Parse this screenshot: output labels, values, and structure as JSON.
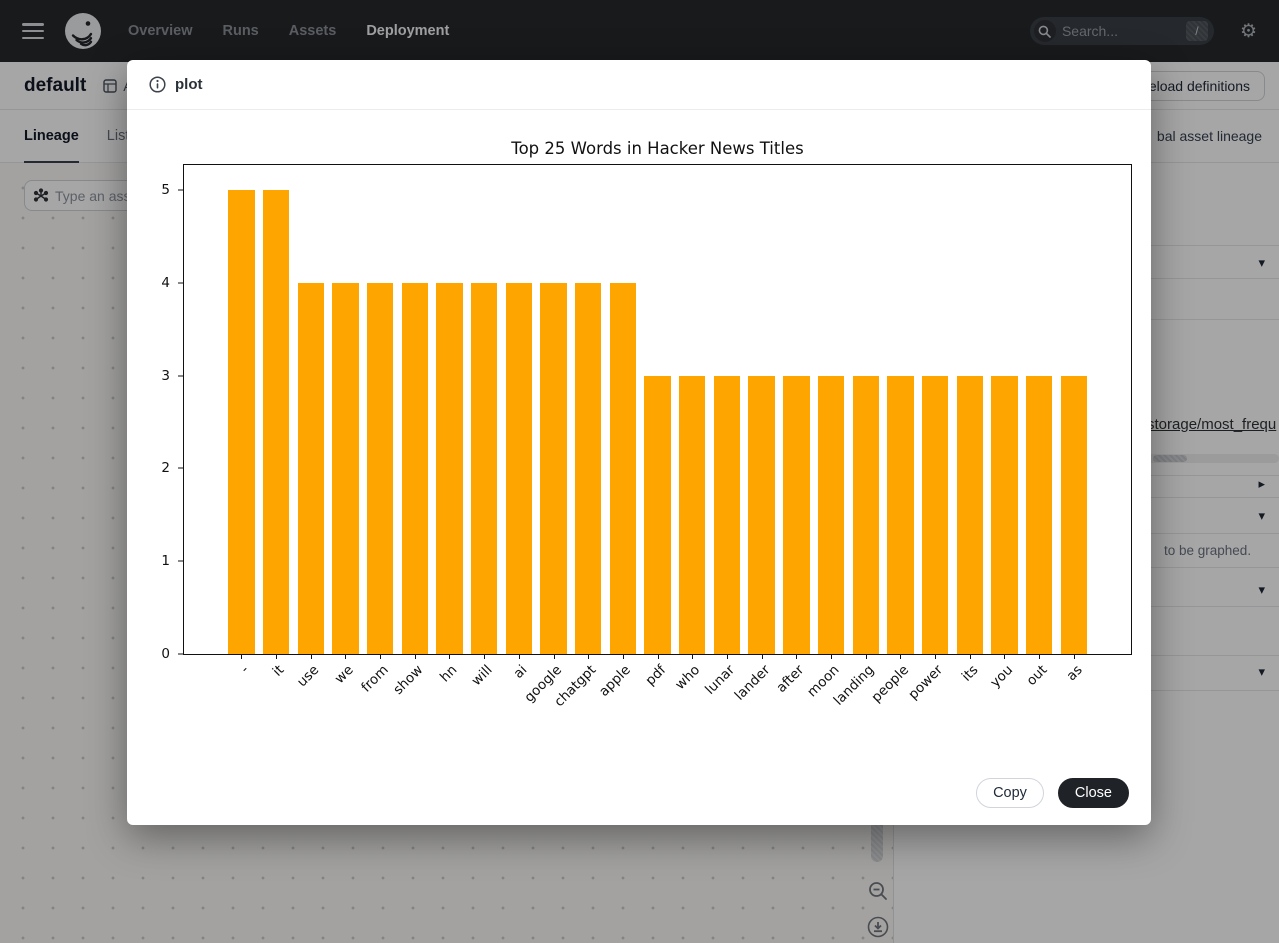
{
  "nav": {
    "items": [
      {
        "label": "Overview"
      },
      {
        "label": "Runs"
      },
      {
        "label": "Assets"
      },
      {
        "label": "Deployment"
      }
    ],
    "active_item": "Deployment",
    "search": {
      "placeholder": "Search...",
      "shortcut": "/"
    }
  },
  "page": {
    "title": "default",
    "location_label": "Assets",
    "reload_button": "Reload definitions",
    "tabs": [
      {
        "label": "Lineage"
      },
      {
        "label": "List"
      }
    ],
    "active_tab": "Lineage",
    "global_lineage_label": "bal asset lineage",
    "asset_search_placeholder": "Type an asset…"
  },
  "panel": {
    "link_text": "storage/most_frequ",
    "hint_text": "to be graphed."
  },
  "modal": {
    "title": "plot",
    "copy_label": "Copy",
    "close_label": "Close"
  },
  "icons": {
    "gear": "⚙",
    "chevron_down": "▾",
    "chevron_right": "▸"
  },
  "colors": {
    "bar_orange": "#FFA500",
    "nav_bg": "#26282c",
    "close_button_bg": "#1f2227",
    "overlay": "rgba(0,0,0,0.35)"
  },
  "chart_data": {
    "type": "bar",
    "title": "Top 25 Words in Hacker News Titles",
    "categories": [
      "-",
      "it",
      "use",
      "we",
      "from",
      "show",
      "hn",
      "will",
      "ai",
      "google",
      "chatgpt",
      "apple",
      "pdf",
      "who",
      "lunar",
      "lander",
      "after",
      "moon",
      "landing",
      "people",
      "power",
      "its",
      "you",
      "out",
      "as"
    ],
    "values": [
      5,
      5,
      4,
      4,
      4,
      4,
      4,
      4,
      4,
      4,
      4,
      4,
      3,
      3,
      3,
      3,
      3,
      3,
      3,
      3,
      3,
      3,
      3,
      3,
      3
    ],
    "bar_color": "#FFA500",
    "xlabel": "",
    "ylabel": "",
    "ylim": [
      0,
      5.27
    ],
    "yticks": [
      0,
      1,
      2,
      3,
      4,
      5
    ],
    "grid": false,
    "legend_position": "none"
  }
}
